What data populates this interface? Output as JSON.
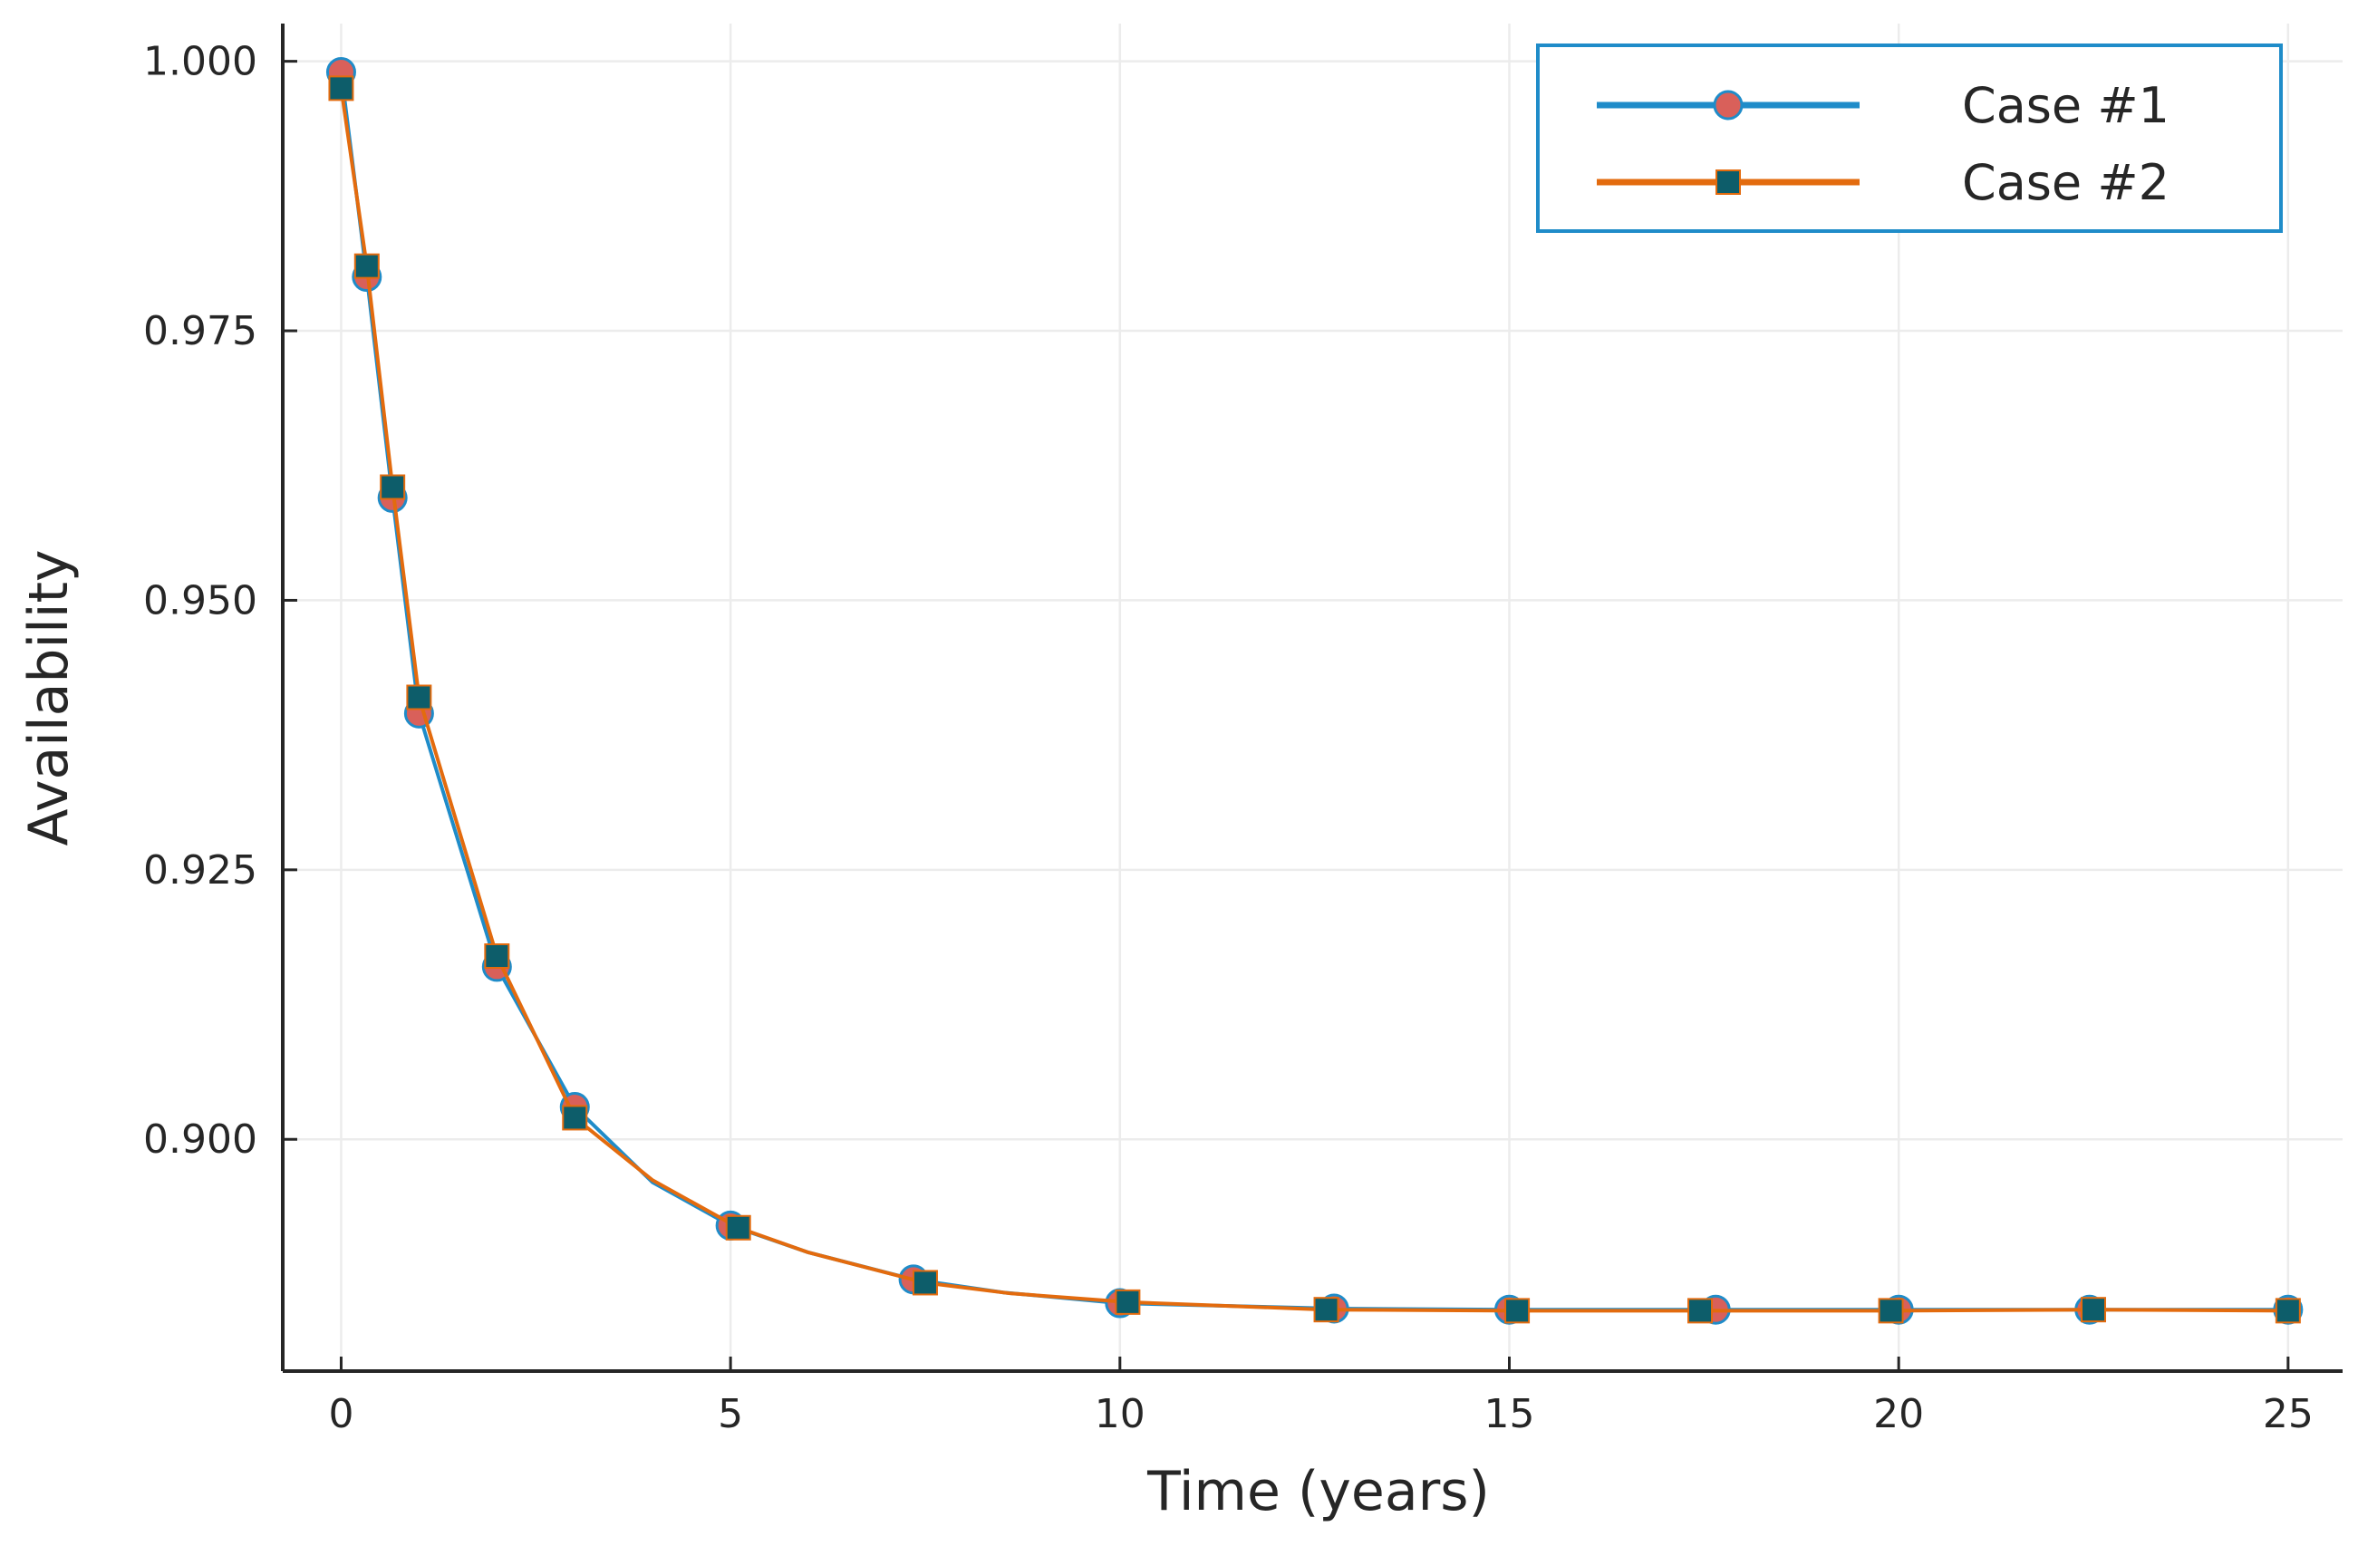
{
  "chart_data": {
    "type": "line",
    "xlabel": "Time (years)",
    "ylabel": "Availability",
    "xlim": [
      -0.75,
      25.7
    ],
    "ylim": [
      0.8785,
      1.0035
    ],
    "x_ticks": [
      0,
      5,
      10,
      15,
      20,
      25
    ],
    "x_tick_labels": [
      "0",
      "5",
      "10",
      "15",
      "20",
      "25"
    ],
    "y_ticks": [
      0.9,
      0.925,
      0.95,
      0.975,
      1.0
    ],
    "y_tick_labels": [
      "0.900",
      "0.925",
      "0.950",
      "0.975",
      "1.000"
    ],
    "grid": true,
    "legend_position": "top-right",
    "series": [
      {
        "name": "Case #1",
        "line_color": "#1f8cc9",
        "marker": "circle",
        "marker_color": "#d9605a",
        "line_points": [
          [
            0,
            0.999
          ],
          [
            0.33,
            0.98
          ],
          [
            0.66,
            0.9595
          ],
          [
            1.0,
            0.9395
          ],
          [
            2.0,
            0.916
          ],
          [
            3.0,
            0.903
          ],
          [
            4.0,
            0.896
          ],
          [
            5.0,
            0.892
          ],
          [
            6.0,
            0.8895
          ],
          [
            7.35,
            0.887
          ],
          [
            8.5,
            0.8858
          ],
          [
            10.0,
            0.8848
          ],
          [
            12.75,
            0.8843
          ],
          [
            15.0,
            0.8842
          ],
          [
            17.65,
            0.8842
          ],
          [
            20.0,
            0.8842
          ],
          [
            22.45,
            0.8842
          ],
          [
            25.0,
            0.8842
          ]
        ],
        "markers": [
          [
            0,
            0.999
          ],
          [
            0.33,
            0.98
          ],
          [
            0.66,
            0.9595
          ],
          [
            1.0,
            0.9395
          ],
          [
            2.0,
            0.916
          ],
          [
            3.0,
            0.903
          ],
          [
            5.0,
            0.892
          ],
          [
            7.35,
            0.887
          ],
          [
            10.0,
            0.8848
          ],
          [
            12.75,
            0.8843
          ],
          [
            15.0,
            0.8842
          ],
          [
            17.65,
            0.8842
          ],
          [
            20.0,
            0.8842
          ],
          [
            22.45,
            0.8842
          ],
          [
            25.0,
            0.8842
          ]
        ]
      },
      {
        "name": "Case #2",
        "line_color": "#e36b0e",
        "marker": "square",
        "marker_color": "#0d5d6a",
        "line_points": [
          [
            0,
            0.9975
          ],
          [
            0.33,
            0.981
          ],
          [
            0.66,
            0.9605
          ],
          [
            1.0,
            0.941
          ],
          [
            2.0,
            0.917
          ],
          [
            3.0,
            0.902
          ],
          [
            4.0,
            0.8962
          ],
          [
            5.1,
            0.8918
          ],
          [
            6.0,
            0.8895
          ],
          [
            7.5,
            0.8867
          ],
          [
            8.6,
            0.8857
          ],
          [
            10.1,
            0.8849
          ],
          [
            12.65,
            0.8842
          ],
          [
            15.1,
            0.8841
          ],
          [
            17.45,
            0.8841
          ],
          [
            19.9,
            0.8841
          ],
          [
            22.5,
            0.8842
          ],
          [
            25.0,
            0.8841
          ]
        ],
        "markers": [
          [
            0,
            0.9975
          ],
          [
            0.33,
            0.981
          ],
          [
            0.66,
            0.9605
          ],
          [
            1.0,
            0.941
          ],
          [
            2.0,
            0.917
          ],
          [
            3.0,
            0.902
          ],
          [
            5.1,
            0.8918
          ],
          [
            7.5,
            0.8867
          ],
          [
            10.1,
            0.8849
          ],
          [
            12.65,
            0.8842
          ],
          [
            15.1,
            0.8841
          ],
          [
            17.45,
            0.8841
          ],
          [
            19.9,
            0.8841
          ],
          [
            22.5,
            0.8842
          ],
          [
            25.0,
            0.8841
          ]
        ]
      }
    ]
  }
}
